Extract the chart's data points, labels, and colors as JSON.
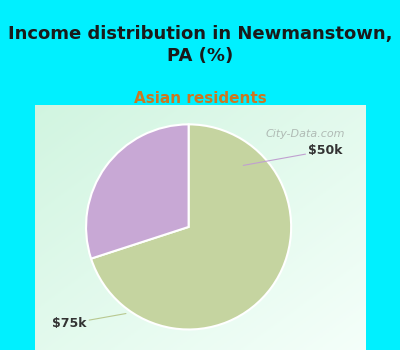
{
  "title": "Income distribution in Newmanstown,\nPA (%)",
  "subtitle": "Asian residents",
  "slices": [
    {
      "label": "$75k",
      "value": 70,
      "color": "#c5d4a0"
    },
    {
      "label": "$50k",
      "value": 30,
      "color": "#c8a8d5"
    }
  ],
  "title_fontsize": 13,
  "subtitle_fontsize": 11,
  "title_color": "#1a1a1a",
  "subtitle_color": "#cc7722",
  "bg_color_top": "#00f0ff",
  "bg_color_chart_tl": "#d8f5e8",
  "bg_color_chart_br": "#f8fffe",
  "watermark": "City-Data.com",
  "start_angle": 90,
  "label_50k": "$50k",
  "label_75k": "$75k",
  "label_color": "#333333",
  "line_color_50k": "#c0a0d0",
  "line_color_75k": "#b8c890"
}
